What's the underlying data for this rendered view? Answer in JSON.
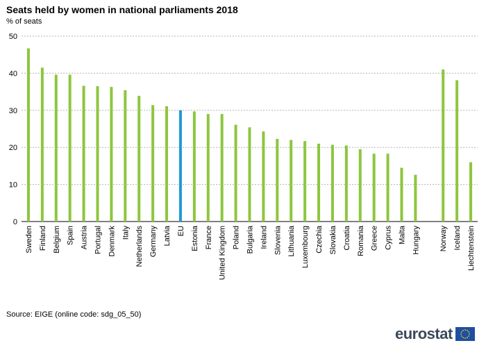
{
  "title": "Seats held by women in national parliaments 2018",
  "subtitle": "% of seats",
  "source": "Source: EIGE (online code: sdg_05_50)",
  "logo_text": "eurostat",
  "colors": {
    "bar": "#8dc63f",
    "highlight": "#1e9ad6",
    "grid": "#b3b3b3",
    "axis": "#000000"
  },
  "chart_data": {
    "type": "bar",
    "title": "Seats held by women in national parliaments 2018",
    "subtitle": "% of seats",
    "ylabel": "% of seats",
    "ylim": [
      0,
      50
    ],
    "yticks": [
      0,
      10,
      20,
      30,
      40,
      50
    ],
    "grid": true,
    "highlight_category": "EU",
    "categories": [
      "Sweden",
      "Finland",
      "Belgium",
      "Spain",
      "Austria",
      "Portugal",
      "Denmark",
      "Italy",
      "Netherlands",
      "Germany",
      "Latvia",
      "EU",
      "Estonia",
      "France",
      "United Kingdom",
      "Poland",
      "Bulgaria",
      "Ireland",
      "Slovenia",
      "Lithuania",
      "Luxembourg",
      "Czechia",
      "Slovakia",
      "Croatia",
      "Romania",
      "Greece",
      "Cyprus",
      "Malta",
      "Hungary",
      "",
      "Norway",
      "Iceland",
      "Liechtenstein"
    ],
    "values": [
      46.7,
      41.5,
      39.6,
      39.6,
      36.6,
      36.5,
      36.3,
      35.4,
      33.9,
      31.4,
      31.1,
      30.0,
      29.7,
      29.0,
      29.0,
      26.1,
      25.4,
      24.3,
      22.3,
      22.0,
      21.7,
      21.0,
      20.7,
      20.5,
      19.5,
      18.3,
      18.3,
      14.5,
      12.6,
      null,
      41.0,
      38.1,
      16.0
    ]
  }
}
